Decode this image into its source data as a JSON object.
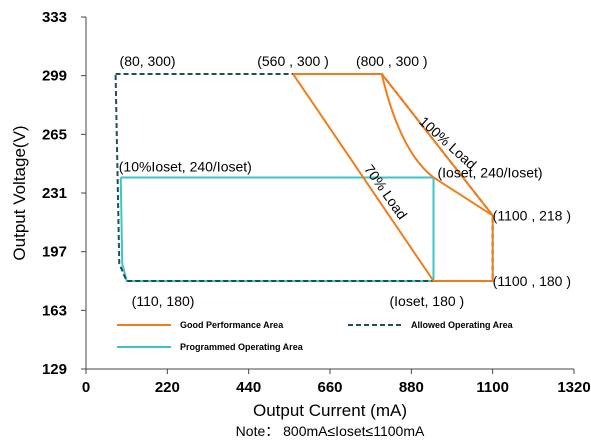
{
  "chart_data": {
    "type": "line",
    "xlabel": "Output Current (mA)",
    "ylabel": "Output Voltage(V)",
    "xlim": [
      0,
      1320
    ],
    "ylim": [
      129,
      333
    ],
    "xticks": [
      "0",
      "220",
      "440",
      "660",
      "880",
      "1100",
      "1320"
    ],
    "yticks": [
      "129",
      "163",
      "197",
      "231",
      "265",
      "299",
      "333"
    ],
    "grid": false,
    "note": "Note： 800mA≤Ioset≤1100mA",
    "series": [
      {
        "name": "Good Performance Area",
        "color": "#f07d1a",
        "dash": "solid",
        "points": [
          [
            560,
            300
          ],
          [
            800,
            300
          ],
          [
            1100,
            218
          ],
          [
            1100,
            180
          ],
          [
            940,
            180
          ],
          [
            560,
            300
          ]
        ],
        "inner_curve": [
          [
            800,
            300
          ],
          [
            940,
            240
          ]
        ]
      },
      {
        "name": "Allowed Operating Area",
        "color": "#1f4e5a",
        "dash": "dashed",
        "points": [
          [
            80,
            300
          ],
          [
            800,
            300
          ],
          [
            1100,
            218
          ],
          [
            1100,
            180
          ],
          [
            110,
            180
          ],
          [
            90,
            190
          ],
          [
            80,
            300
          ]
        ]
      },
      {
        "name": "Programmed Operating Area",
        "color": "#3ac6c9",
        "dash": "solid",
        "points": [
          [
            94,
            240
          ],
          [
            940,
            240
          ],
          [
            940,
            180
          ],
          [
            110,
            180
          ],
          [
            98,
            190
          ],
          [
            94,
            240
          ]
        ]
      }
    ],
    "annotations": [
      {
        "text": "(80, 300)",
        "x": 80,
        "y": 300
      },
      {
        "text": "(560 , 300 )",
        "x": 560,
        "y": 300
      },
      {
        "text": "(800 , 300 )",
        "x": 800,
        "y": 300
      },
      {
        "text": "(10%Ioset, 240/Ioset)",
        "x": 94,
        "y": 240
      },
      {
        "text": "(Ioset, 240/Ioset)",
        "x": 940,
        "y": 240
      },
      {
        "text": "(1100 , 218 )",
        "x": 1100,
        "y": 218
      },
      {
        "text": "(1100 , 180 )",
        "x": 1100,
        "y": 180
      },
      {
        "text": "(110, 180)",
        "x": 110,
        "y": 180
      },
      {
        "text": "(Ioset, 180 )",
        "x": 940,
        "y": 180
      },
      {
        "text": "100% Load",
        "x": 970,
        "y": 258
      },
      {
        "text": "70% Load",
        "x": 800,
        "y": 230
      }
    ]
  }
}
